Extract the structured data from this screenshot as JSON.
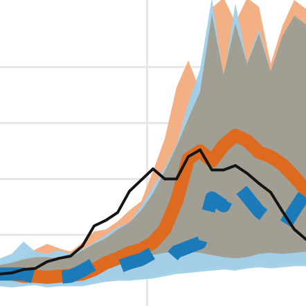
{
  "chart_data": {
    "type": "area",
    "title": "",
    "xlabel": "",
    "ylabel": "",
    "xlim": [
      0,
      26
    ],
    "ylim": [
      0,
      26
    ],
    "grid": true,
    "hgrid": [
      5,
      10,
      15,
      20
    ],
    "vgrid": [
      12.5
    ],
    "colors": {
      "orange_band": "#f2ac7e",
      "blue_band": "#9fd0ea",
      "gray_overlap": "#a19e94",
      "orange_line": "#de6a1f",
      "blue_dashes": "#1b7ab8",
      "black_line": "#141414",
      "grid": "#e6e6e6"
    },
    "series": [
      {
        "role": "orange_band",
        "x": [
          0,
          1,
          2,
          3,
          4,
          5,
          6,
          7,
          8,
          9,
          10,
          11,
          12,
          13,
          14,
          15,
          16,
          17,
          18,
          19,
          20,
          21,
          22,
          23,
          24,
          25,
          26
        ],
        "upper": [
          2.4,
          2.6,
          2.9,
          3.7,
          4.2,
          3.8,
          3.5,
          4.3,
          5.3,
          5.5,
          6.2,
          7.2,
          8.0,
          10.7,
          13.6,
          18.2,
          20.6,
          17.9,
          25.3,
          26.2,
          24.0,
          26.2,
          25.4,
          20.3,
          23.7,
          26.0,
          25.2
        ],
        "lower": [
          0.5,
          0.6,
          0.5,
          0.7,
          0.6,
          0.6,
          0.8,
          0.7,
          0.8,
          0.9,
          1.0,
          1.0,
          1.2,
          1.3,
          1.5,
          1.8,
          1.7,
          1.9,
          2.1,
          2.2,
          2.0,
          2.1,
          2.3,
          2.2,
          2.4,
          2.4,
          2.5
        ]
      },
      {
        "role": "blue_band",
        "x": [
          0,
          1,
          2,
          3,
          4,
          5,
          6,
          7,
          8,
          9,
          10,
          11,
          12,
          13,
          14,
          15,
          16,
          17,
          18,
          19,
          20,
          21,
          22,
          23,
          24,
          25,
          26
        ],
        "upper": [
          2.9,
          3.3,
          4.4,
          3.5,
          3.3,
          3.6,
          3.3,
          3.7,
          4.3,
          5.0,
          5.7,
          6.1,
          7.6,
          9.3,
          11.0,
          13.1,
          16.8,
          19.8,
          26.2,
          19.0,
          25.7,
          20.4,
          23.4,
          19.6,
          22.8,
          24.6,
          23.8
        ],
        "lower": [
          0.4,
          0.3,
          0.4,
          0.5,
          0.3,
          0.4,
          0.4,
          0.4,
          0.6,
          0.8,
          0.9,
          0.9,
          1.0,
          1.1,
          1.3,
          1.5,
          1.6,
          1.7,
          1.8,
          1.9,
          1.8,
          2.0,
          2.1,
          2.0,
          2.1,
          2.2,
          2.2
        ]
      },
      {
        "role": "gray_overlap",
        "x": [
          0,
          1,
          2,
          3,
          4,
          5,
          6,
          7,
          8,
          9,
          10,
          11,
          12,
          13,
          14,
          15,
          16,
          17,
          18,
          19,
          20,
          21,
          22,
          23,
          24,
          25,
          26
        ],
        "upper": [
          2.3,
          2.5,
          2.8,
          3.0,
          3.0,
          2.9,
          3.0,
          3.6,
          4.2,
          4.7,
          5.5,
          6.1,
          7.2,
          8.7,
          10.7,
          12.9,
          15.4,
          17.8,
          24.7,
          19.3,
          23.9,
          20.3,
          23.0,
          19.6,
          22.8,
          24.6,
          23.8
        ],
        "lower": [
          1.3,
          1.3,
          1.2,
          1.1,
          1.1,
          1.2,
          1.3,
          1.4,
          1.7,
          2.1,
          2.4,
          2.7,
          2.9,
          3.2,
          3.4,
          3.5,
          3.5,
          3.4,
          3.2,
          3.0,
          2.9,
          3.0,
          3.3,
          3.4,
          3.3,
          3.4,
          3.5
        ]
      },
      {
        "role": "orange_line",
        "x": [
          0,
          1,
          2,
          3,
          4,
          5,
          6,
          7,
          8,
          9,
          10,
          11,
          12,
          13,
          14,
          15,
          16,
          17,
          18,
          19,
          20,
          21,
          22,
          23,
          24,
          25,
          26
        ],
        "values": [
          1.5,
          1.5,
          1.3,
          1.3,
          1.2,
          1.3,
          1.4,
          1.5,
          1.9,
          2.5,
          2.9,
          3.4,
          3.7,
          4.3,
          5.5,
          8.0,
          11.8,
          12.5,
          11.6,
          13.0,
          13.9,
          13.4,
          12.4,
          12.0,
          11.3,
          10.2,
          9.0
        ]
      },
      {
        "role": "blue_dashes",
        "x": [
          0,
          1,
          2,
          3,
          4,
          5,
          6,
          7,
          8,
          9,
          10,
          11,
          12,
          13,
          14,
          15,
          16,
          17,
          18,
          19,
          20,
          21,
          22,
          23,
          24,
          25,
          26
        ],
        "values": [
          1.5,
          1.5,
          1.5,
          1.2,
          1.5,
          1.2,
          1.3,
          1.8,
          2.4,
          1.9,
          2.1,
          2.5,
          2.8,
          3.4,
          2.3,
          3.5,
          3.9,
          4.3,
          8.3,
          7.6,
          9.7,
          8.4,
          7.1,
          6.3,
          5.5,
          7.2,
          8.8
        ]
      },
      {
        "role": "black_line",
        "x": [
          0,
          1,
          2,
          3,
          4,
          5,
          6,
          7,
          8,
          9,
          10,
          11,
          12,
          13,
          14,
          15,
          16,
          17,
          18,
          19,
          20,
          21,
          22,
          23,
          24,
          25,
          26
        ],
        "values": [
          1.5,
          1.6,
          1.9,
          2.0,
          2.6,
          2.9,
          3.1,
          4.0,
          5.8,
          6.3,
          7.0,
          8.9,
          9.9,
          10.9,
          10.0,
          10.0,
          12.0,
          12.6,
          10.8,
          10.8,
          11.2,
          10.5,
          9.6,
          8.8,
          7.1,
          5.5,
          4.6
        ]
      }
    ]
  }
}
